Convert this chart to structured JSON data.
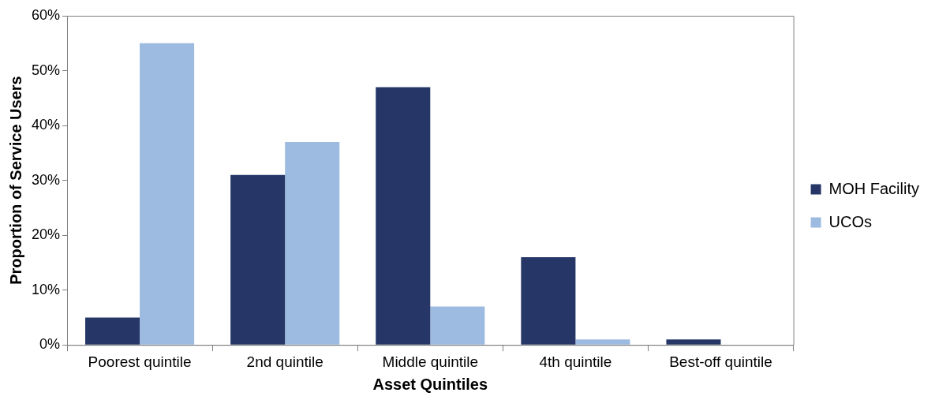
{
  "chart_data": {
    "type": "bar",
    "xlabel": "Asset Quintiles",
    "ylabel": "Proportion of Service Users",
    "categories": [
      "Poorest quintile",
      "2nd quintile",
      "Middle quintile",
      "4th quintile",
      "Best-off quintile"
    ],
    "series": [
      {
        "name": "MOH Facility",
        "color": "#253667",
        "values": [
          5,
          31,
          47,
          16,
          1
        ]
      },
      {
        "name": "UCOs",
        "color": "#9dbbe0",
        "values": [
          55,
          37,
          7,
          1,
          0
        ]
      }
    ],
    "ylim": [
      0,
      60
    ],
    "yticks": [
      {
        "value": 0,
        "label": "0%"
      },
      {
        "value": 10,
        "label": "10%"
      },
      {
        "value": 20,
        "label": "20%"
      },
      {
        "value": 30,
        "label": "30%"
      },
      {
        "value": 40,
        "label": "40%"
      },
      {
        "value": 50,
        "label": "50%"
      },
      {
        "value": 60,
        "label": "60%"
      }
    ],
    "legend": "right"
  }
}
